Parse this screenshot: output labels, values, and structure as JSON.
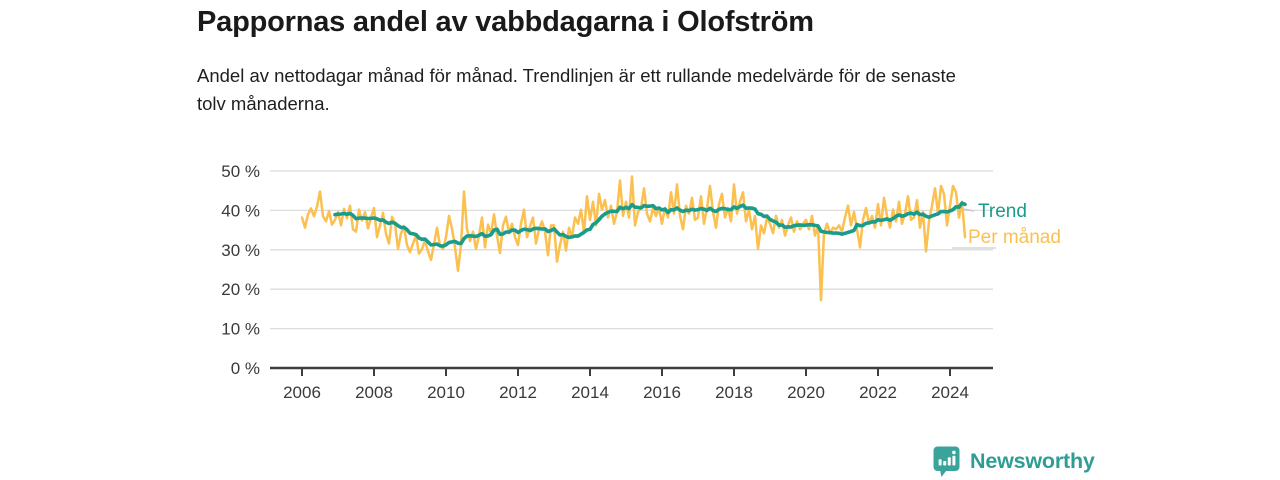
{
  "header": {
    "title": "Pappornas andel av vabbdagarna i Olofström",
    "subtitle": "Andel av nettodagar månad för månad. Trendlinjen är ett rullande medelvärde för de senaste tolv månaderna."
  },
  "branding": {
    "name": "Newsworthy",
    "logo_icon": "bar-chart-speech-bubble",
    "color": "#2e9e95"
  },
  "chart_data": {
    "type": "line",
    "title": "Pappornas andel av vabbdagarna i Olofström",
    "xlabel": "",
    "ylabel": "",
    "unit": "%",
    "frequency": "monthly",
    "x_start": "2006-01",
    "x_end": "2024-06",
    "ylim": [
      0,
      52
    ],
    "grid": "horizontal",
    "legend_position": "right-of-line-end",
    "yticks": [
      {
        "value": 0,
        "label": "0 %"
      },
      {
        "value": 10,
        "label": "10 %"
      },
      {
        "value": 20,
        "label": "20 %"
      },
      {
        "value": 30,
        "label": "30 %"
      },
      {
        "value": 40,
        "label": "40 %"
      },
      {
        "value": 50,
        "label": "50 %"
      }
    ],
    "xticks": [
      {
        "value": 2006,
        "label": "2006"
      },
      {
        "value": 2008,
        "label": "2008"
      },
      {
        "value": 2010,
        "label": "2010"
      },
      {
        "value": 2012,
        "label": "2012"
      },
      {
        "value": 2014,
        "label": "2014"
      },
      {
        "value": 2016,
        "label": "2016"
      },
      {
        "value": 2018,
        "label": "2018"
      },
      {
        "value": 2020,
        "label": "2020"
      },
      {
        "value": 2022,
        "label": "2022"
      },
      {
        "value": 2024,
        "label": "2024"
      }
    ],
    "series": [
      {
        "name": "Per månad",
        "color": "#fbc04f",
        "values": [
          38.2,
          35.6,
          39.0,
          40.5,
          38.5,
          41.0,
          44.8,
          38.5,
          37.2,
          39.8,
          36.4,
          37.6,
          39.6,
          36.2,
          40.4,
          38.0,
          41.2,
          35.2,
          34.6,
          40.2,
          37.4,
          39.6,
          35.4,
          38.2,
          40.6,
          33.2,
          36.2,
          39.4,
          34.0,
          31.6,
          38.4,
          36.6,
          30.2,
          34.2,
          36.0,
          31.2,
          29.4,
          31.6,
          33.6,
          29.0,
          30.2,
          32.4,
          29.6,
          27.4,
          31.4,
          35.6,
          31.0,
          30.2,
          33.2,
          38.6,
          35.4,
          30.6,
          24.7,
          31.2,
          44.8,
          35.2,
          32.2,
          34.6,
          30.2,
          33.6,
          38.2,
          30.6,
          36.4,
          34.2,
          39.0,
          33.6,
          29.2,
          36.2,
          38.4,
          34.2,
          36.6,
          33.2,
          31.2,
          36.6,
          40.2,
          33.2,
          36.0,
          38.2,
          31.6,
          35.2,
          37.2,
          34.6,
          28.6,
          36.2,
          36.2,
          27.0,
          31.2,
          34.6,
          29.8,
          35.6,
          33.2,
          38.2,
          36.6,
          40.2,
          34.4,
          43.6,
          37.6,
          42.2,
          36.2,
          44.2,
          40.2,
          42.6,
          38.2,
          41.2,
          36.6,
          39.6,
          47.6,
          38.6,
          42.2,
          38.2,
          48.6,
          36.2,
          39.6,
          40.6,
          45.6,
          39.2,
          37.2,
          40.6,
          38.6,
          40.6,
          36.6,
          40.6,
          38.2,
          44.6,
          39.2,
          46.6,
          38.6,
          35.2,
          41.2,
          39.2,
          43.2,
          37.6,
          38.2,
          43.6,
          36.6,
          40.6,
          46.2,
          39.6,
          35.6,
          41.6,
          44.2,
          38.2,
          40.6,
          37.2,
          46.6,
          39.2,
          42.2,
          44.6,
          37.2,
          40.2,
          35.2,
          38.6,
          30.2,
          36.2,
          34.2,
          38.2,
          36.6,
          34.2,
          38.6,
          35.6,
          37.6,
          33.6,
          36.2,
          38.2,
          34.6,
          37.2,
          35.2,
          36.6,
          37.6,
          35.2,
          38.6,
          33.6,
          36.2,
          17.2,
          34.2,
          36.6,
          34.2,
          35.6,
          35.2,
          36.2,
          34.6,
          38.2,
          41.2,
          36.2,
          39.6,
          35.2,
          30.6,
          37.6,
          40.6,
          36.6,
          38.6,
          35.6,
          41.6,
          36.2,
          43.2,
          38.6,
          35.6,
          40.2,
          37.2,
          42.2,
          36.6,
          39.2,
          43.6,
          37.6,
          38.2,
          42.6,
          35.6,
          39.6,
          29.6,
          37.2,
          41.2,
          45.6,
          39.2,
          46.2,
          44.2,
          36.2,
          41.2,
          46.2,
          44.6,
          38.2,
          42.2,
          33.2
        ]
      },
      {
        "name": "Trend",
        "color": "#1a9c8c",
        "derivation": "rolling_mean_12_months_of_per_manad"
      }
    ]
  }
}
